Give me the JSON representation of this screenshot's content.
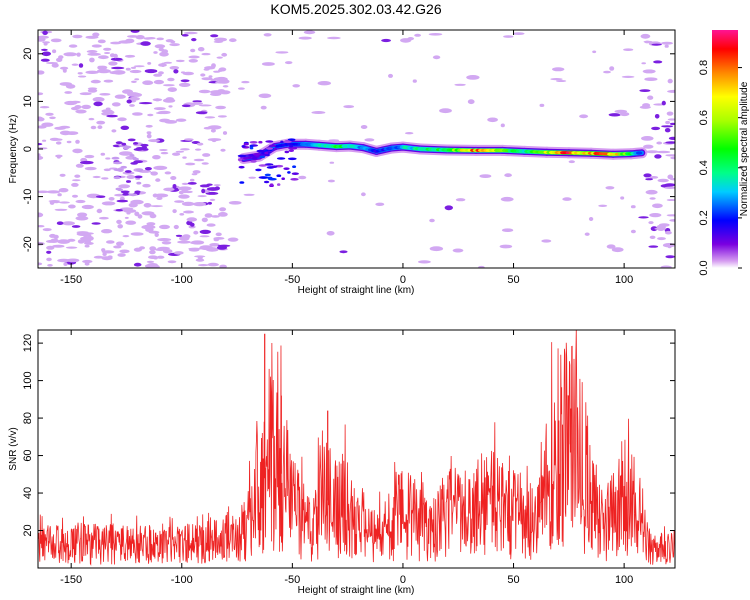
{
  "chart_data": [
    {
      "type": "heatmap",
      "title": "KOM5.2025.302.03.42.G26",
      "xlabel": "Height of straight line (km)",
      "ylabel": "Frequency (Hz)",
      "xlim": [
        -165,
        123
      ],
      "ylim": [
        -25,
        25
      ],
      "xticks": [
        -150,
        -100,
        -50,
        0,
        50,
        100
      ],
      "yticks": [
        -20,
        -10,
        0,
        10,
        20
      ],
      "colorbar": {
        "label": "Normalized spectral amplitude",
        "range": [
          0,
          0.95
        ],
        "ticks": [
          0.0,
          0.2,
          0.4,
          0.6,
          0.8
        ]
      },
      "ridge": [
        {
          "x": -72,
          "y": -2.0,
          "amp": 0.1
        },
        {
          "x": -65,
          "y": -1.5,
          "amp": 0.15
        },
        {
          "x": -58,
          "y": 0.5,
          "amp": 0.25
        },
        {
          "x": -52,
          "y": 1.0,
          "amp": 0.2
        },
        {
          "x": -44,
          "y": 1.0,
          "amp": 0.25
        },
        {
          "x": -38,
          "y": 0.8,
          "amp": 0.35
        },
        {
          "x": -30,
          "y": 0.5,
          "amp": 0.5
        },
        {
          "x": -24,
          "y": 0.6,
          "amp": 0.4
        },
        {
          "x": -18,
          "y": 0.3,
          "amp": 0.3
        },
        {
          "x": -12,
          "y": -0.5,
          "amp": 0.2
        },
        {
          "x": -5,
          "y": 0.2,
          "amp": 0.25
        },
        {
          "x": 0,
          "y": 0.4,
          "amp": 0.35
        },
        {
          "x": 8,
          "y": 0.0,
          "amp": 0.4
        },
        {
          "x": 20,
          "y": -0.2,
          "amp": 0.55
        },
        {
          "x": 33,
          "y": -0.3,
          "amp": 0.85
        },
        {
          "x": 45,
          "y": -0.3,
          "amp": 0.55
        },
        {
          "x": 55,
          "y": -0.5,
          "amp": 0.45
        },
        {
          "x": 65,
          "y": -0.7,
          "amp": 0.7
        },
        {
          "x": 75,
          "y": -0.8,
          "amp": 0.9
        },
        {
          "x": 85,
          "y": -0.9,
          "amp": 0.8
        },
        {
          "x": 95,
          "y": -1.1,
          "amp": 0.92
        },
        {
          "x": 103,
          "y": -1.0,
          "amp": 0.5
        },
        {
          "x": 108,
          "y": -0.8,
          "amp": 0.2
        }
      ]
    },
    {
      "type": "line",
      "xlabel": "Height of straight line (km)",
      "ylabel": "SNR (v/v)",
      "xlim": [
        -165,
        123
      ],
      "ylim": [
        0,
        127
      ],
      "xticks": [
        -150,
        -100,
        -50,
        0,
        50,
        100
      ],
      "yticks": [
        20,
        40,
        60,
        80,
        100,
        120
      ],
      "series": [
        {
          "name": "SNR",
          "color": "#ee2222",
          "x": [
            -165,
            -150,
            -120,
            -100,
            -80,
            -75,
            -70,
            -66,
            -63,
            -60,
            -57,
            -54,
            -50,
            -45,
            -40,
            -37,
            -34,
            -30,
            -26,
            -22,
            -18,
            -12,
            -6,
            0,
            5,
            10,
            15,
            20,
            25,
            30,
            35,
            40,
            45,
            50,
            55,
            60,
            65,
            70,
            75,
            80,
            85,
            90,
            95,
            100,
            105,
            110,
            115,
            123
          ],
          "y": [
            12,
            13,
            12,
            12,
            14,
            13,
            22,
            38,
            48,
            58,
            55,
            48,
            32,
            24,
            20,
            38,
            36,
            30,
            35,
            20,
            18,
            16,
            22,
            28,
            26,
            20,
            22,
            28,
            30,
            26,
            30,
            36,
            32,
            28,
            22,
            26,
            45,
            62,
            66,
            58,
            38,
            18,
            30,
            42,
            30,
            12,
            9,
            11
          ]
        }
      ],
      "spikes": [
        {
          "x": -62.5,
          "y": 125
        },
        {
          "x": -55,
          "y": 92
        },
        {
          "x": -34,
          "y": 84
        },
        {
          "x": 75,
          "y": 92
        }
      ]
    }
  ]
}
